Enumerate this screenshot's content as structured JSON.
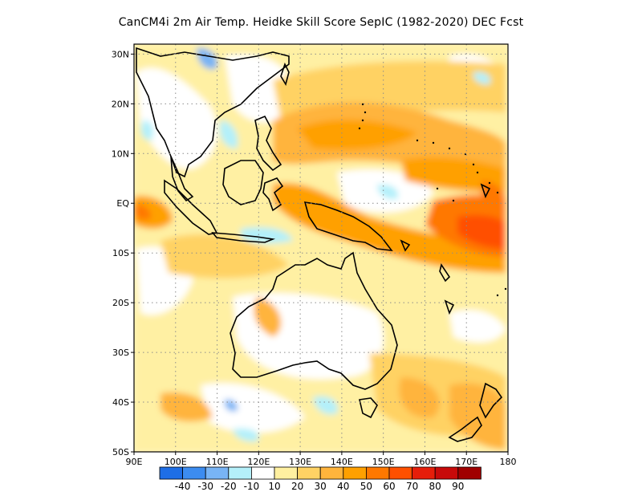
{
  "title": "CanCM4i  2m Air Temp. Heidke Skill Score SepIC (1982-2020) DEC Fcst",
  "map": {
    "lon_range": [
      90,
      180
    ],
    "lat_range": [
      -50,
      32
    ],
    "grid_lines": "dotted",
    "lon_ticks": [
      {
        "v": 90,
        "label": "90E"
      },
      {
        "v": 100,
        "label": "100E"
      },
      {
        "v": 110,
        "label": "110E"
      },
      {
        "v": 120,
        "label": "120E"
      },
      {
        "v": 130,
        "label": "130E"
      },
      {
        "v": 140,
        "label": "140E"
      },
      {
        "v": 150,
        "label": "150E"
      },
      {
        "v": 160,
        "label": "160E"
      },
      {
        "v": 170,
        "label": "170E"
      },
      {
        "v": 180,
        "label": "180"
      }
    ],
    "lat_ticks": [
      {
        "v": 30,
        "label": "30N"
      },
      {
        "v": 20,
        "label": "20N"
      },
      {
        "v": 10,
        "label": "10N"
      },
      {
        "v": 0,
        "label": "EQ"
      },
      {
        "v": -10,
        "label": "10S"
      },
      {
        "v": -20,
        "label": "20S"
      },
      {
        "v": -30,
        "label": "30S"
      },
      {
        "v": -40,
        "label": "40S"
      },
      {
        "v": -50,
        "label": "50S"
      }
    ]
  },
  "colorbar": {
    "colors": [
      "#1e6ee6",
      "#3c8cf0",
      "#78b4f5",
      "#b4f0fa",
      "#ffffff",
      "#fff0a0",
      "#ffd264",
      "#ffb43c",
      "#ffa000",
      "#ff7800",
      "#ff5000",
      "#e61e0a",
      "#c80a0a",
      "#a00000"
    ],
    "labels": [
      "-40",
      "-30",
      "-20",
      "-10",
      "10",
      "20",
      "30",
      "40",
      "50",
      "60",
      "70",
      "80",
      "90"
    ]
  },
  "fields": {
    "light_yellow": "#fff0a0",
    "yellow": "#ffd264",
    "light_orange": "#ffb43c",
    "orange": "#ffa000",
    "dark_orange": "#ff7800",
    "red_orange": "#ff5000",
    "light_blue": "#b4f0fa",
    "mid_blue": "#78b4f5",
    "blue": "#3c8cf0"
  }
}
